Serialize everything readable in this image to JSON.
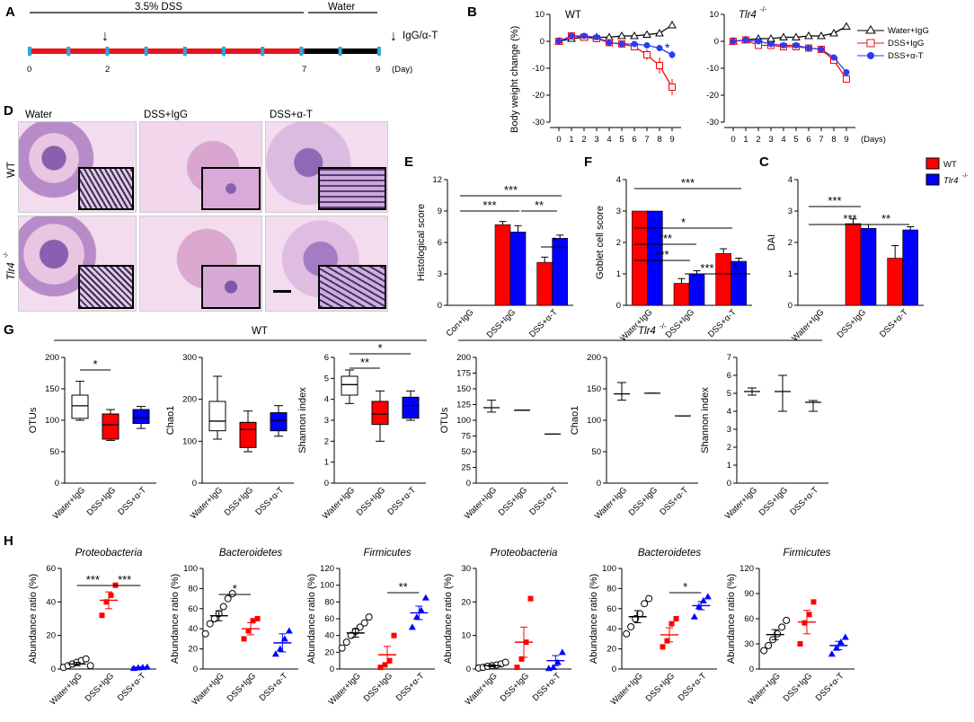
{
  "colors": {
    "wt": "#ff0000",
    "tlr4": "#0000ff",
    "black": "#000000",
    "water": "#000000"
  },
  "panel_A": {
    "letter": "A",
    "dss_label": "3.5% DSS",
    "water_label": "Water",
    "arrow_glyph": "↓",
    "legend": "IgG/α-T",
    "ticks": [
      "0",
      "2",
      "7",
      "9"
    ],
    "unit": "(Day)"
  },
  "panel_B": {
    "letter": "B",
    "wt_title": "WT",
    "tlr4_title": "Tlr4",
    "tlr4_sup": "-/-",
    "ylabel": "Body weight change (%)",
    "xunit": "(Days)",
    "star": "*",
    "legend": [
      "Water+IgG",
      "DSS+IgG",
      "DSS+α-T"
    ]
  },
  "panel_D": {
    "letter": "D",
    "cols": [
      "Water",
      "DSS+IgG",
      "DSS+α-T"
    ],
    "row_wt": "WT",
    "row_tlr4": "Tlr4",
    "row_tlr4_sup": "-/-"
  },
  "panel_E": {
    "letter": "E"
  },
  "panel_F": {
    "letter": "F"
  },
  "panel_C": {
    "letter": "C",
    "legend_wt": "WT",
    "legend_tlr4": "Tlr4",
    "legend_tlr4_sup": "-/-"
  },
  "panel_G": {
    "letter": "G",
    "wt_header": "WT",
    "tlr4_header": "Tlr4",
    "tlr4_sup": "-/-"
  },
  "panel_H": {
    "letter": "H"
  },
  "chart_data": [
    {
      "id": "B_WT",
      "type": "line",
      "title": "WT",
      "x": [
        0,
        1,
        2,
        3,
        4,
        5,
        6,
        7,
        8,
        9
      ],
      "xlabel": "",
      "ylabel": "Body weight change (%)",
      "ylim": [
        -30,
        10
      ],
      "yticks": [
        10,
        0,
        -10,
        -20,
        -30
      ],
      "series": [
        {
          "name": "Water+IgG",
          "marker": "triangle",
          "values": [
            0,
            1,
            1.5,
            1.5,
            1.5,
            2,
            2,
            2.5,
            3,
            6
          ]
        },
        {
          "name": "DSS+IgG",
          "marker": "square",
          "values": [
            0,
            2,
            1.5,
            1,
            -0.5,
            -1,
            -2,
            -5,
            -9,
            -17
          ],
          "errors": [
            0,
            0.5,
            0.5,
            0.5,
            0.5,
            0.5,
            1,
            2,
            3,
            3
          ]
        },
        {
          "name": "DSS+α-T",
          "marker": "circle",
          "values": [
            0,
            2,
            2,
            1.5,
            -0.5,
            -1,
            -1,
            -1.5,
            -2.5,
            -5
          ],
          "errors": [
            0,
            0.5,
            0.5,
            0.5,
            0.5,
            0.5,
            0.5,
            1,
            1,
            1.5
          ]
        }
      ],
      "annotations": [
        {
          "x": 9,
          "text": "*"
        }
      ]
    },
    {
      "id": "B_Tlr4",
      "type": "line",
      "title": "Tlr4-/-",
      "x": [
        0,
        1,
        2,
        3,
        4,
        5,
        6,
        7,
        8,
        9
      ],
      "xlabel": "(Days)",
      "ylim": [
        -30,
        10
      ],
      "yticks": [
        10,
        0,
        -10,
        -20,
        -30
      ],
      "series": [
        {
          "name": "Water+IgG",
          "marker": "triangle",
          "values": [
            0,
            0.5,
            1,
            1,
            1.5,
            1.5,
            2,
            2,
            3,
            5.5
          ]
        },
        {
          "name": "DSS+IgG",
          "marker": "square",
          "values": [
            0,
            0.5,
            -1.5,
            -1.5,
            -2,
            -2,
            -2.5,
            -3,
            -7,
            -14
          ]
        },
        {
          "name": "DSS+α-T",
          "marker": "circle",
          "values": [
            0,
            0.5,
            0,
            -1,
            -1.5,
            -1.5,
            -2.5,
            -3,
            -6,
            -11.5
          ]
        }
      ]
    },
    {
      "id": "E",
      "type": "bar",
      "ylabel": "Histological score",
      "ylim": [
        0,
        12
      ],
      "yticks": [
        0,
        3,
        6,
        9,
        12
      ],
      "categories": [
        "Con+IgG",
        "DSS+IgG",
        "DSS+α-T"
      ],
      "series": [
        {
          "name": "WT",
          "values": [
            0,
            7.7,
            4.1
          ],
          "errors": [
            0,
            0.3,
            0.5
          ]
        },
        {
          "name": "Tlr4-/-",
          "values": [
            0,
            7.0,
            6.4
          ],
          "errors": [
            0,
            0.6,
            0.3
          ]
        }
      ],
      "significance": [
        {
          "text": "***",
          "from": "Con+IgG",
          "to": "DSS+IgG",
          "level": 1
        },
        {
          "text": "**",
          "from": "DSS+IgG",
          "to": "DSS+α-T",
          "level": 1
        },
        {
          "text": "***",
          "from": "Con+IgG",
          "to": "DSS+α-T",
          "level": 2
        },
        {
          "text": "*",
          "from": "DSS+α-T WT",
          "to": "DSS+α-T Tlr4-/-",
          "level": 0
        }
      ]
    },
    {
      "id": "F",
      "type": "bar",
      "ylabel": "Goblet cell score",
      "ylim": [
        0,
        4
      ],
      "yticks": [
        0,
        1,
        2,
        3,
        4
      ],
      "categories": [
        "Water+IgG",
        "DSS+IgG",
        "DSS+α-T"
      ],
      "series": [
        {
          "name": "WT",
          "values": [
            3,
            0.7,
            1.65
          ],
          "errors": [
            0,
            0.15,
            0.15
          ]
        },
        {
          "name": "Tlr4-/-",
          "values": [
            3,
            1.0,
            1.4
          ],
          "errors": [
            0,
            0.1,
            0.1
          ]
        }
      ],
      "significance": [
        "***",
        "***",
        "*",
        "***",
        "***",
        "*"
      ]
    },
    {
      "id": "C",
      "type": "bar",
      "ylabel": "DAI",
      "ylim": [
        0,
        4
      ],
      "yticks": [
        0,
        1,
        2,
        3,
        4
      ],
      "categories": [
        "Water+IgG",
        "DSS+IgG",
        "DSS+α-T"
      ],
      "series": [
        {
          "name": "WT",
          "values": [
            0,
            2.6,
            1.5
          ],
          "errors": [
            0,
            0.15,
            0.4
          ]
        },
        {
          "name": "Tlr4-/-",
          "values": [
            0,
            2.45,
            2.4
          ],
          "errors": [
            0,
            0.12,
            0.1
          ]
        }
      ],
      "significance": [
        "***",
        "***",
        "**"
      ]
    },
    {
      "id": "G_WT_OTUs",
      "type": "box",
      "ylabel": "OTUs",
      "ylim": [
        0,
        200
      ],
      "yticks": [
        0,
        50,
        100,
        150,
        200
      ],
      "categories": [
        "Water+IgG",
        "DSS+IgG",
        "DSS+α-T"
      ],
      "boxes": [
        {
          "min": 100,
          "q1": 103,
          "median": 123,
          "q3": 140,
          "max": 162
        },
        {
          "min": 68,
          "q1": 70,
          "median": 93,
          "q3": 110,
          "max": 117
        },
        {
          "min": 87,
          "q1": 95,
          "median": 104,
          "q3": 117,
          "max": 122
        }
      ],
      "significance": [
        {
          "text": "*",
          "from": 0,
          "to": 1
        }
      ]
    },
    {
      "id": "G_WT_Chao1",
      "type": "box",
      "ylabel": "Chao1",
      "ylim": [
        0,
        300
      ],
      "yticks": [
        0,
        100,
        200,
        300
      ],
      "categories": [
        "Water+IgG",
        "DSS+IgG",
        "DSS+α-T"
      ],
      "boxes": [
        {
          "min": 105,
          "q1": 125,
          "median": 148,
          "q3": 195,
          "max": 255
        },
        {
          "min": 75,
          "q1": 85,
          "median": 128,
          "q3": 145,
          "max": 172
        },
        {
          "min": 112,
          "q1": 125,
          "median": 150,
          "q3": 168,
          "max": 185
        }
      ]
    },
    {
      "id": "G_WT_Shannon",
      "type": "box",
      "ylabel": "Shannon index",
      "ylim": [
        0,
        6
      ],
      "yticks": [
        0,
        1,
        2,
        3,
        4,
        5,
        6
      ],
      "categories": [
        "Water+IgG",
        "DSS+IgG",
        "DSS+α-T"
      ],
      "boxes": [
        {
          "min": 3.8,
          "q1": 4.2,
          "median": 4.7,
          "q3": 5.1,
          "max": 5.4
        },
        {
          "min": 2.0,
          "q1": 2.8,
          "median": 3.3,
          "q3": 3.9,
          "max": 4.4
        },
        {
          "min": 3.0,
          "q1": 3.1,
          "median": 3.7,
          "q3": 4.1,
          "max": 4.4
        }
      ],
      "significance": [
        {
          "text": "**",
          "from": 0,
          "to": 1
        },
        {
          "text": "*",
          "from": 0,
          "to": 2
        }
      ]
    },
    {
      "id": "G_Tlr4_OTUs",
      "type": "box",
      "ylabel": "OTUs",
      "ylim": [
        0,
        200
      ],
      "yticks": [
        0,
        25,
        50,
        75,
        100,
        125,
        150,
        175,
        200
      ],
      "categories": [
        "Water+IgG",
        "DSS+IgG",
        "DSS+α-T"
      ],
      "boxes": [
        {
          "min": 113,
          "q1": 115,
          "median": 120,
          "q3": 125,
          "max": 132
        },
        {
          "min": 116,
          "q1": 116,
          "median": 116,
          "q3": 116,
          "max": 116
        },
        {
          "min": 78,
          "q1": 78,
          "median": 78,
          "q3": 78,
          "max": 78
        }
      ]
    },
    {
      "id": "G_Tlr4_Chao1",
      "type": "box",
      "ylabel": "Chao1",
      "ylim": [
        0,
        200
      ],
      "yticks": [
        0,
        50,
        100,
        150,
        200
      ],
      "categories": [
        "Water+IgG",
        "DSS+IgG",
        "DSS+α-T"
      ],
      "boxes": [
        {
          "min": 132,
          "q1": 138,
          "median": 142,
          "q3": 150,
          "max": 160
        },
        {
          "min": 143,
          "q1": 143,
          "median": 143,
          "q3": 143,
          "max": 143
        },
        {
          "min": 107,
          "q1": 107,
          "median": 107,
          "q3": 107,
          "max": 107
        }
      ]
    },
    {
      "id": "G_Tlr4_Shannon",
      "type": "box",
      "ylabel": "Shannon index",
      "ylim": [
        0,
        7
      ],
      "yticks": [
        0,
        1,
        2,
        3,
        4,
        5,
        6,
        7
      ],
      "categories": [
        "Water+IgG",
        "DSS+IgG",
        "DSS+α-T"
      ],
      "boxes": [
        {
          "min": 4.9,
          "q1": 5.0,
          "median": 5.1,
          "q3": 5.2,
          "max": 5.3
        },
        {
          "min": 4.0,
          "q1": 4.0,
          "median": 5.1,
          "q3": 6.0,
          "max": 6.0
        },
        {
          "min": 4.0,
          "q1": 4.0,
          "median": 4.5,
          "q3": 4.6,
          "max": 4.6
        }
      ]
    },
    {
      "id": "H1",
      "type": "scatter",
      "title": "Proteobacteria",
      "ylabel": "Abundance ratio (%)",
      "ylim": [
        0,
        60
      ],
      "yticks": [
        0,
        20,
        40,
        60
      ],
      "categories": [
        "Water+IgG",
        "DSS+IgG",
        "DSS+α-T"
      ],
      "groups": [
        [
          1,
          2,
          3,
          4,
          5,
          6,
          2
        ],
        [
          32,
          40,
          44,
          50
        ],
        [
          0.5,
          0.8,
          1,
          1.2
        ]
      ],
      "means": [
        3,
        41,
        1
      ],
      "sems": [
        1,
        5,
        0.2
      ],
      "significance": [
        {
          "text": "***",
          "from": 0,
          "to": 1
        },
        {
          "text": "***",
          "from": 1,
          "to": 2
        }
      ]
    },
    {
      "id": "H2",
      "type": "scatter",
      "title": "Bacteroidetes",
      "ylabel": "Abundance ratio (%)",
      "ylim": [
        0,
        100
      ],
      "yticks": [
        0,
        20,
        40,
        60,
        80,
        100
      ],
      "categories": [
        "Water+IgG",
        "DSS+IgG",
        "DSS+α-T"
      ],
      "groups": [
        [
          35,
          45,
          50,
          55,
          62,
          70,
          75
        ],
        [
          30,
          38,
          48,
          50
        ],
        [
          15,
          20,
          30,
          38
        ]
      ],
      "means": [
        53,
        40,
        26
      ],
      "sems": [
        5,
        6,
        9
      ],
      "significance": [
        {
          "text": "*",
          "from": 0,
          "to": 1
        }
      ]
    },
    {
      "id": "H3",
      "type": "scatter",
      "title": "Firmicutes",
      "ylabel": "Abundance ratio (%)",
      "ylim": [
        0,
        120
      ],
      "yticks": [
        0,
        20,
        40,
        60,
        80,
        100,
        120
      ],
      "categories": [
        "Water+IgG",
        "DSS+IgG",
        "DSS+α-T"
      ],
      "groups": [
        [
          25,
          32,
          40,
          45,
          50,
          55,
          62
        ],
        [
          2,
          5,
          10,
          40
        ],
        [
          50,
          62,
          70,
          85
        ]
      ],
      "means": [
        43,
        17,
        67
      ],
      "sems": [
        5,
        10,
        8
      ],
      "significance": [
        {
          "text": "**",
          "from": 1,
          "to": 2
        }
      ]
    },
    {
      "id": "H4",
      "type": "scatter",
      "title": "Proteobacteria",
      "ylabel": "Abundance ratio (%)",
      "ylim": [
        0,
        30
      ],
      "yticks": [
        0,
        10,
        20,
        30
      ],
      "categories": [
        "Water+IgG",
        "DSS+IgG",
        "DSS+α-T"
      ],
      "groups": [
        [
          0.3,
          0.5,
          0.8,
          1,
          1.2,
          1.5,
          2
        ],
        [
          0.5,
          3,
          8,
          21
        ],
        [
          0.2,
          0.5,
          2,
          5
        ]
      ],
      "means": [
        1,
        8,
        2.5
      ],
      "sems": [
        0.3,
        4.5,
        1.5
      ]
    },
    {
      "id": "H5",
      "type": "scatter",
      "title": "Bacteroidetes",
      "ylabel": "Abundance ratio (%)",
      "ylim": [
        0,
        100
      ],
      "yticks": [
        0,
        20,
        40,
        60,
        80,
        100
      ],
      "categories": [
        "Water+IgG",
        "DSS+IgG",
        "DSS+α-T"
      ],
      "groups": [
        [
          35,
          42,
          50,
          55,
          65,
          70
        ],
        [
          22,
          28,
          45,
          50
        ],
        [
          52,
          62,
          68,
          72
        ]
      ],
      "means": [
        52,
        34,
        63
      ],
      "sems": [
        6,
        7,
        4
      ],
      "significance": [
        {
          "text": "*",
          "from": 1,
          "to": 2
        }
      ]
    },
    {
      "id": "H6",
      "type": "scatter",
      "title": "Firmicutes",
      "ylabel": "Abundance ratio (%)",
      "ylim": [
        0,
        120
      ],
      "yticks": [
        0,
        30,
        60,
        90,
        120
      ],
      "categories": [
        "Water+IgG",
        "DSS+IgG",
        "DSS+α-T"
      ],
      "groups": [
        [
          22,
          28,
          35,
          42,
          50,
          58
        ],
        [
          30,
          55,
          65,
          80
        ],
        [
          18,
          25,
          32,
          38
        ]
      ],
      "means": [
        41,
        56,
        28
      ],
      "sems": [
        6,
        14,
        5
      ]
    }
  ]
}
